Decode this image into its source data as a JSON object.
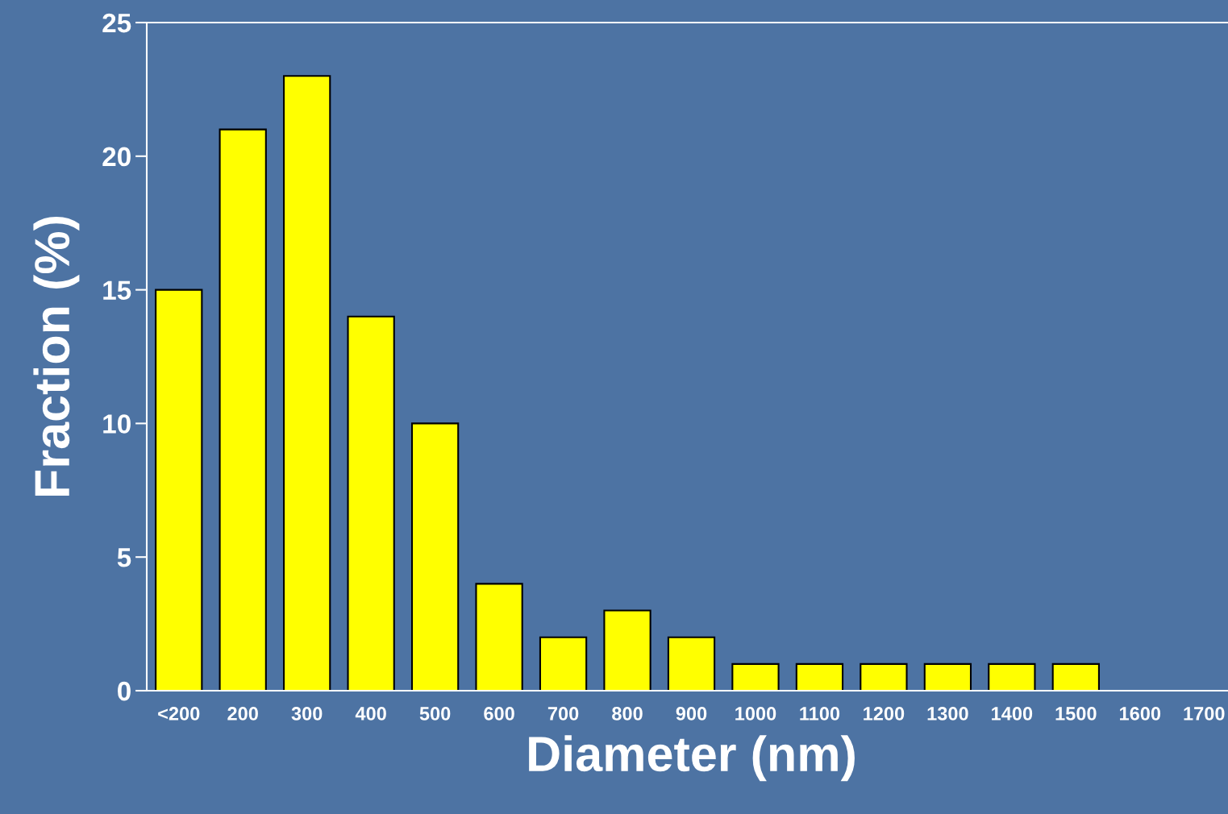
{
  "chart_data": {
    "type": "bar",
    "xlabel": "Diameter (nm)",
    "ylabel": "Fraction (%)",
    "categories": [
      "<200",
      "200",
      "300",
      "400",
      "500",
      "600",
      "700",
      "800",
      "900",
      "1000",
      "1100",
      "1200",
      "1300",
      "1400",
      "1500",
      "1600",
      "1700"
    ],
    "values": [
      15,
      21,
      23,
      14,
      10,
      4,
      2,
      3,
      2,
      1,
      1,
      1,
      1,
      1,
      1,
      null,
      null
    ],
    "color": "#ffff00",
    "ylim": [
      0,
      25
    ],
    "yticks": [
      0,
      5,
      10,
      15,
      20,
      25
    ],
    "grid": false,
    "legend": false
  }
}
